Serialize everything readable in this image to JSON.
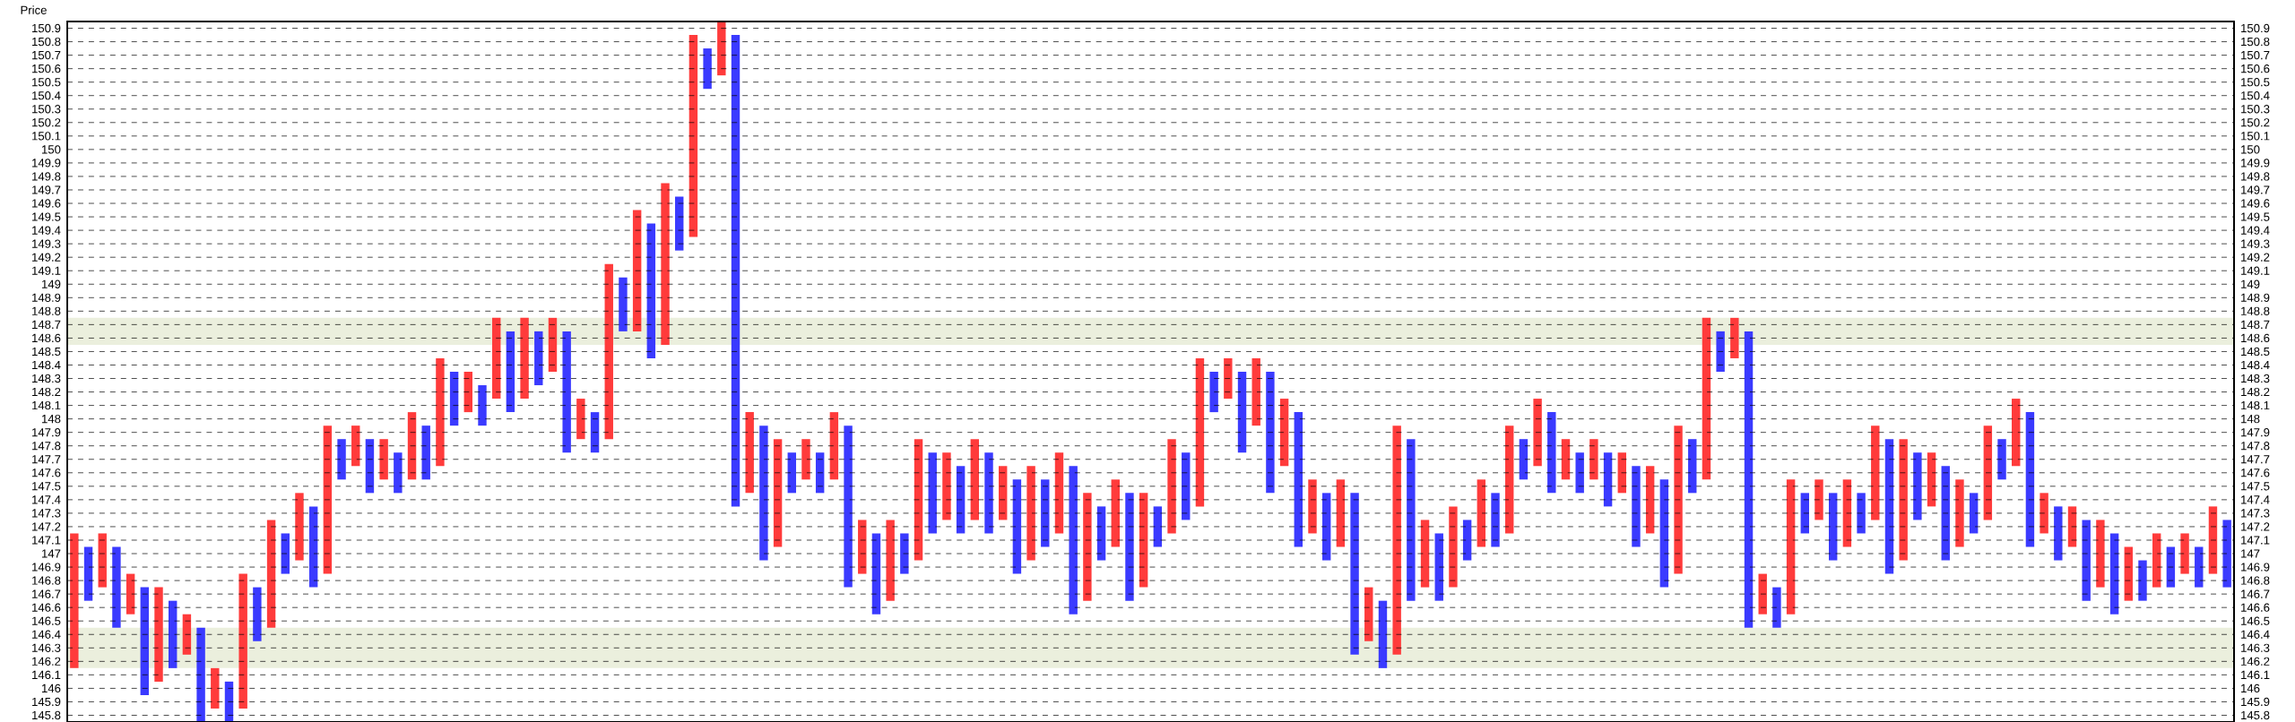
{
  "chart_data": {
    "type": "bar",
    "ylabel": "Price",
    "ylim": [
      145.75,
      150.95
    ],
    "categories": [
      null,
      null,
      null,
      null,
      null,
      null,
      null,
      null,
      null,
      null,
      null,
      null,
      null,
      null,
      null,
      null,
      null,
      null,
      null,
      null,
      null,
      null,
      null,
      null,
      null,
      null,
      null,
      null,
      null,
      null,
      null,
      null,
      null,
      null,
      null,
      null,
      null,
      null,
      null,
      null,
      null,
      null,
      null,
      null,
      null,
      null,
      null,
      null,
      null,
      null,
      null,
      null,
      null,
      null,
      null,
      null,
      null,
      null,
      null,
      null,
      null,
      null,
      null,
      null,
      null,
      null,
      null,
      null,
      null,
      null,
      null,
      null,
      null,
      null,
      null,
      null,
      null,
      null,
      null,
      null,
      null,
      null,
      null,
      null,
      null,
      null,
      null,
      null,
      null,
      null,
      null,
      null,
      null,
      null,
      null,
      null,
      null,
      null,
      null,
      null,
      null,
      null,
      null,
      null,
      null,
      null,
      null,
      null,
      null,
      null,
      null,
      null,
      null,
      null,
      null,
      null,
      null,
      null,
      null,
      null,
      null,
      null,
      null,
      null,
      null,
      null,
      null,
      null,
      null,
      null,
      null,
      null,
      null,
      null,
      null,
      null,
      null,
      null,
      null,
      null,
      null,
      null,
      null,
      null,
      null,
      null,
      null,
      null,
      null,
      null,
      null,
      null,
      null,
      null
    ],
    "base": [
      146.15,
      146.65,
      146.75,
      146.45,
      146.55,
      145.95,
      146.05,
      146.15,
      146.25,
      145.75,
      145.85,
      145.75,
      145.85,
      146.35,
      146.45,
      146.85,
      146.95,
      146.75,
      146.85,
      147.55,
      147.65,
      147.45,
      147.55,
      147.45,
      147.55,
      147.55,
      147.65,
      147.95,
      148.05,
      147.95,
      148.15,
      148.05,
      148.15,
      148.25,
      148.35,
      147.75,
      147.85,
      147.75,
      147.85,
      148.65,
      148.65,
      148.45,
      148.55,
      149.25,
      149.35,
      150.45,
      150.55,
      147.35,
      147.45,
      146.95,
      147.05,
      147.45,
      147.55,
      147.45,
      147.55,
      146.75,
      146.85,
      146.55,
      146.65,
      146.85,
      146.95,
      147.15,
      147.25,
      147.15,
      147.25,
      147.15,
      147.25,
      146.85,
      146.95,
      147.05,
      147.15,
      146.55,
      146.65,
      146.95,
      147.05,
      146.65,
      146.75,
      147.05,
      147.15,
      147.25,
      147.35,
      148.05,
      148.15,
      147.75,
      147.95,
      147.45,
      147.65,
      147.05,
      147.15,
      146.95,
      147.05,
      146.25,
      146.35,
      146.15,
      146.25,
      146.65,
      146.75,
      146.65,
      146.75,
      146.95,
      147.05,
      147.05,
      147.15,
      147.55,
      147.65,
      147.45,
      147.55,
      147.45,
      147.55,
      147.35,
      147.45,
      147.05,
      147.15,
      146.75,
      146.85,
      147.45,
      147.55,
      148.35,
      148.45,
      146.45,
      146.55,
      146.45,
      146.55,
      147.15,
      147.25,
      146.95,
      147.05,
      147.15,
      147.25,
      146.85,
      146.95,
      147.25,
      147.35,
      146.95,
      147.05,
      147.15,
      147.25,
      147.55,
      147.65,
      147.05,
      147.15,
      146.95,
      147.05,
      146.65,
      146.75,
      146.55,
      146.65,
      146.65,
      146.75,
      146.75,
      146.85,
      146.75,
      146.85,
      146.75
    ],
    "values": [
      1,
      0.4,
      0.4,
      0.6,
      0.3,
      0.8,
      0.7,
      0.5,
      0.3,
      0.7,
      0.3,
      0.3,
      1,
      0.4,
      0.8,
      0.3,
      0.5,
      0.6,
      1.1,
      0.3,
      0.3,
      0.4,
      0.3,
      0.3,
      0.5,
      0.4,
      0.8,
      0.4,
      0.3,
      0.3,
      0.6,
      0.6,
      0.6,
      0.4,
      0.4,
      0.9,
      0.3,
      0.3,
      1.3,
      0.4,
      0.9,
      1,
      1.2,
      0.4,
      1.5,
      0.3,
      0.4,
      3.5,
      0.6,
      1,
      0.8,
      0.3,
      0.3,
      0.3,
      0.5,
      1.2,
      0.4,
      0.6,
      0.6,
      0.3,
      0.9,
      0.6,
      0.5,
      0.5,
      0.6,
      0.6,
      0.4,
      0.7,
      0.7,
      0.5,
      0.6,
      1.1,
      0.8,
      0.4,
      0.5,
      0.8,
      0.7,
      0.3,
      0.7,
      0.5,
      1.1,
      0.3,
      0.3,
      0.6,
      0.5,
      0.9,
      0.5,
      1,
      0.4,
      0.5,
      0.5,
      1.2,
      0.4,
      0.5,
      1.7,
      1.2,
      0.5,
      0.5,
      0.6,
      0.3,
      0.5,
      0.4,
      0.8,
      0.3,
      0.5,
      0.6,
      0.3,
      0.3,
      0.3,
      0.4,
      0.3,
      0.6,
      0.5,
      0.8,
      1.1,
      0.4,
      1.2,
      0.3,
      0.3,
      2.2,
      0.3,
      0.3,
      1,
      0.3,
      0.3,
      0.5,
      0.5,
      0.3,
      0.7,
      1,
      0.9,
      0.5,
      0.4,
      0.7,
      0.5,
      0.3,
      0.7,
      0.3,
      0.5,
      1,
      0.3,
      0.4,
      0.3,
      0.6,
      0.5,
      0.6,
      0.4,
      0.3,
      0.4,
      0.3,
      0.3,
      0.3,
      0.5,
      0.5
    ],
    "colors": [
      "#ff3b3b",
      "#3a3aff",
      "#ff3b3b",
      "#3a3aff",
      "#ff3b3b",
      "#3a3aff",
      "#ff3b3b",
      "#3a3aff",
      "#ff3b3b",
      "#3a3aff",
      "#ff3b3b",
      "#3a3aff",
      "#ff3b3b",
      "#3a3aff",
      "#ff3b3b",
      "#3a3aff",
      "#ff3b3b",
      "#3a3aff",
      "#ff3b3b",
      "#3a3aff",
      "#ff3b3b",
      "#3a3aff",
      "#ff3b3b",
      "#3a3aff",
      "#ff3b3b",
      "#3a3aff",
      "#ff3b3b",
      "#3a3aff",
      "#ff3b3b",
      "#3a3aff",
      "#ff3b3b",
      "#3a3aff",
      "#ff3b3b",
      "#3a3aff",
      "#ff3b3b",
      "#3a3aff",
      "#ff3b3b",
      "#3a3aff",
      "#ff3b3b",
      "#3a3aff",
      "#ff3b3b",
      "#3a3aff",
      "#ff3b3b",
      "#3a3aff",
      "#ff3b3b",
      "#3a3aff",
      "#ff3b3b",
      "#3a3aff",
      "#ff3b3b",
      "#3a3aff",
      "#ff3b3b",
      "#3a3aff",
      "#ff3b3b",
      "#3a3aff",
      "#ff3b3b",
      "#3a3aff",
      "#ff3b3b",
      "#3a3aff",
      "#ff3b3b",
      "#3a3aff",
      "#ff3b3b",
      "#3a3aff",
      "#ff3b3b",
      "#3a3aff",
      "#ff3b3b",
      "#3a3aff",
      "#ff3b3b",
      "#3a3aff",
      "#ff3b3b",
      "#3a3aff",
      "#ff3b3b",
      "#3a3aff",
      "#ff3b3b",
      "#3a3aff",
      "#ff3b3b",
      "#3a3aff",
      "#ff3b3b",
      "#3a3aff",
      "#ff3b3b",
      "#3a3aff",
      "#ff3b3b",
      "#3a3aff",
      "#ff3b3b",
      "#3a3aff",
      "#ff3b3b",
      "#3a3aff",
      "#ff3b3b",
      "#3a3aff",
      "#ff3b3b",
      "#3a3aff",
      "#ff3b3b",
      "#3a3aff",
      "#ff3b3b",
      "#3a3aff",
      "#ff3b3b",
      "#3a3aff",
      "#ff3b3b",
      "#3a3aff",
      "#ff3b3b",
      "#3a3aff",
      "#ff3b3b",
      "#3a3aff",
      "#ff3b3b",
      "#3a3aff",
      "#ff3b3b",
      "#3a3aff",
      "#ff3b3b",
      "#3a3aff",
      "#ff3b3b",
      "#3a3aff",
      "#ff3b3b",
      "#3a3aff",
      "#ff3b3b",
      "#3a3aff",
      "#ff3b3b",
      "#3a3aff",
      "#ff3b3b",
      "#3a3aff",
      "#ff3b3b",
      "#3a3aff",
      "#ff3b3b",
      "#3a3aff",
      "#ff3b3b",
      "#3a3aff",
      "#ff3b3b",
      "#3a3aff",
      "#ff3b3b",
      "#3a3aff",
      "#ff3b3b",
      "#3a3aff",
      "#ff3b3b",
      "#3a3aff",
      "#ff3b3b",
      "#3a3aff",
      "#ff3b3b",
      "#3a3aff",
      "#ff3b3b",
      "#3a3aff",
      "#ff3b3b",
      "#3a3aff",
      "#ff3b3b",
      "#3a3aff",
      "#ff3b3b",
      "#3a3aff",
      "#ff3b3b",
      "#3a3aff",
      "#ff3b3b",
      "#3a3aff",
      "#ff3b3b",
      "#3a3aff",
      "#ff3b3b",
      "#3a3aff",
      "#ff3b3b",
      "#3a3aff"
    ],
    "yticks": [
      145.8,
      145.9,
      146,
      146.1,
      146.2,
      146.3,
      146.4,
      146.5,
      146.6,
      146.7,
      146.8,
      146.9,
      147,
      147.1,
      147.2,
      147.3,
      147.4,
      147.5,
      147.6,
      147.7,
      147.8,
      147.9,
      148,
      148.1,
      148.2,
      148.3,
      148.4,
      148.5,
      148.6,
      148.7,
      148.8,
      148.9,
      149,
      149.1,
      149.2,
      149.3,
      149.4,
      149.5,
      149.6,
      149.7,
      149.8,
      149.9,
      150,
      150.1,
      150.2,
      150.3,
      150.4,
      150.5,
      150.6,
      150.7,
      150.8,
      150.9
    ],
    "y2lim": [
      145.75,
      150.95
    ],
    "y2ticks": [
      145.8,
      145.9,
      146,
      146.1,
      146.2,
      146.3,
      146.4,
      146.5,
      146.6,
      146.7,
      146.8,
      146.9,
      147,
      147.1,
      147.2,
      147.3,
      147.4,
      147.5,
      147.6,
      147.7,
      147.8,
      147.9,
      148,
      148.1,
      148.2,
      148.3,
      148.4,
      148.5,
      148.6,
      148.7,
      148.8,
      148.9,
      149,
      149.1,
      149.2,
      149.3,
      149.4,
      149.5,
      149.6,
      149.7,
      149.8,
      149.9,
      150,
      150.1,
      150.2,
      150.3,
      150.4,
      150.5,
      150.6,
      150.7,
      150.8,
      150.9
    ],
    "tick_labels": "y",
    "grid": "y",
    "bands": [
      {
        "axis": "y",
        "from": 148.55,
        "to": 148.75,
        "color": "#ebefdd"
      },
      {
        "axis": "y",
        "from": 146.15,
        "to": 146.45,
        "color": "#ebefdd"
      }
    ]
  }
}
